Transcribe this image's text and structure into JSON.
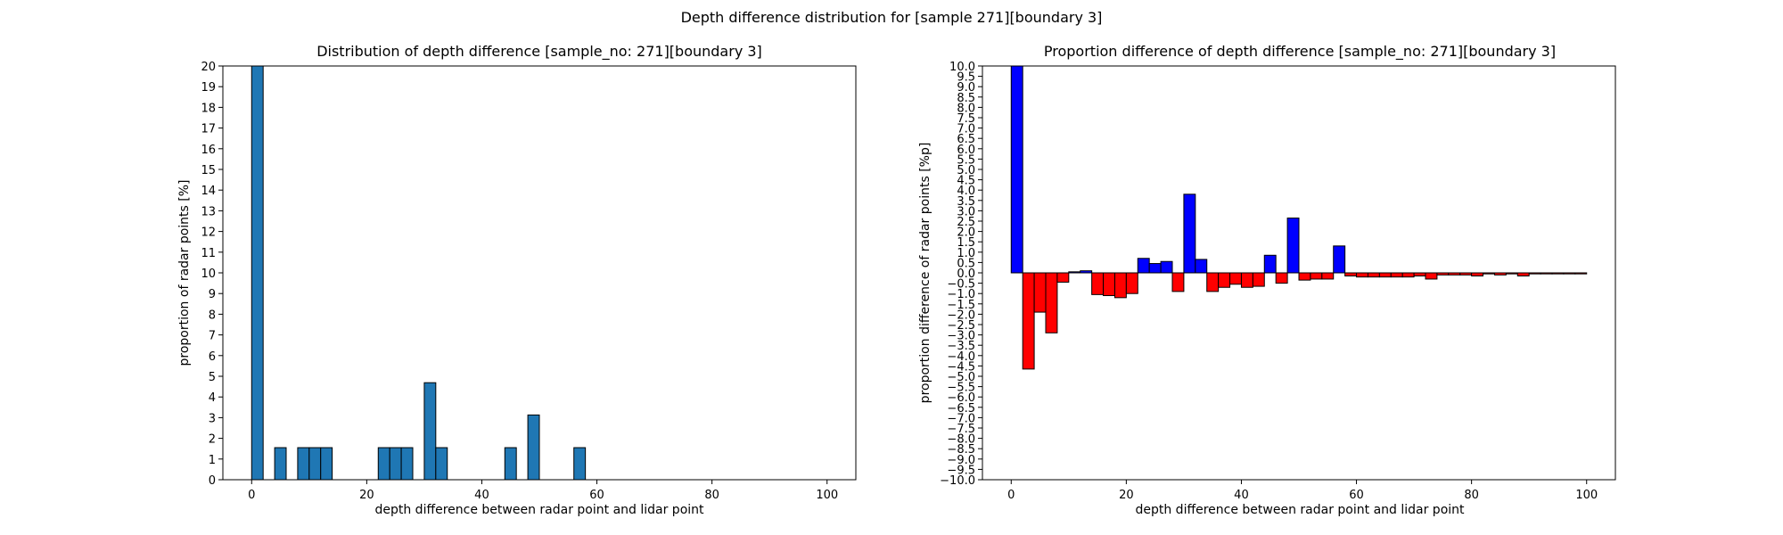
{
  "figure": {
    "suptitle": "Depth difference distribution for [sample 271][boundary 3]"
  },
  "chart_data": [
    {
      "type": "bar",
      "title": "Distribution of depth difference [sample_no: 271][boundary 3]",
      "xlabel": "depth difference between radar point and lidar point",
      "ylabel": "proportion of radar points [%]",
      "xlim": [
        -5,
        105
      ],
      "ylim": [
        0,
        20
      ],
      "xticks": [
        "0",
        "20",
        "40",
        "60",
        "80",
        "100"
      ],
      "yticks": [
        "0",
        "1",
        "2",
        "3",
        "4",
        "5",
        "6",
        "7",
        "8",
        "9",
        "10",
        "11",
        "12",
        "13",
        "14",
        "15",
        "16",
        "17",
        "18",
        "19",
        "20"
      ],
      "bin_width": 2,
      "bar_color": "#1f77b4",
      "edge_color": "#000000",
      "x": [
        1,
        5,
        9,
        11,
        13,
        23,
        25,
        27,
        31,
        33,
        45,
        49,
        57
      ],
      "values": [
        20.0,
        1.55,
        1.55,
        1.55,
        1.55,
        1.55,
        1.55,
        1.55,
        4.69,
        1.55,
        1.55,
        3.13,
        1.55
      ]
    },
    {
      "type": "bar",
      "title": "Proportion difference of depth difference [sample_no: 271][boundary 3]",
      "xlabel": "depth difference between radar point and lidar point",
      "ylabel": "proportion difference of radar points [%p]",
      "xlim": [
        -5,
        105
      ],
      "ylim": [
        -10,
        10
      ],
      "xticks": [
        "0",
        "20",
        "40",
        "60",
        "80",
        "100"
      ],
      "yticks": [
        "−10.0",
        "−9.5",
        "−9.0",
        "−8.5",
        "−8.0",
        "−7.5",
        "−7.0",
        "−6.5",
        "−6.0",
        "−5.5",
        "−5.0",
        "−4.5",
        "−4.0",
        "−3.5",
        "−3.0",
        "−2.5",
        "−2.0",
        "−1.5",
        "−1.0",
        "−0.5",
        "0.0",
        "0.5",
        "1.0",
        "1.5",
        "2.0",
        "2.5",
        "3.0",
        "3.5",
        "4.0",
        "4.5",
        "5.0",
        "5.5",
        "6.0",
        "6.5",
        "7.0",
        "7.5",
        "8.0",
        "8.5",
        "9.0",
        "9.5",
        "10.0"
      ],
      "bin_width": 2,
      "positive_color": "#0000ff",
      "negative_color": "#ff0000",
      "edge_color": "#000000",
      "x": [
        1,
        3,
        5,
        7,
        9,
        11,
        13,
        15,
        17,
        19,
        21,
        23,
        25,
        27,
        29,
        31,
        33,
        35,
        37,
        39,
        41,
        43,
        45,
        47,
        49,
        51,
        53,
        55,
        57,
        59,
        61,
        63,
        65,
        67,
        69,
        71,
        73,
        75,
        77,
        79,
        81,
        83,
        85,
        87,
        89,
        91,
        93,
        95,
        97,
        99
      ],
      "values": [
        10.0,
        -4.65,
        -1.9,
        -2.9,
        -0.45,
        0.05,
        0.1,
        -1.05,
        -1.1,
        -1.2,
        -1.0,
        0.7,
        0.45,
        0.55,
        -0.9,
        3.8,
        0.65,
        -0.9,
        -0.7,
        -0.55,
        -0.7,
        -0.65,
        0.85,
        -0.5,
        2.65,
        -0.35,
        -0.3,
        -0.3,
        1.3,
        -0.15,
        -0.2,
        -0.2,
        -0.2,
        -0.2,
        -0.2,
        -0.15,
        -0.3,
        -0.1,
        -0.1,
        -0.1,
        -0.15,
        -0.05,
        -0.1,
        -0.05,
        -0.15,
        -0.05,
        -0.05,
        -0.05,
        -0.05,
        -0.05
      ]
    }
  ]
}
